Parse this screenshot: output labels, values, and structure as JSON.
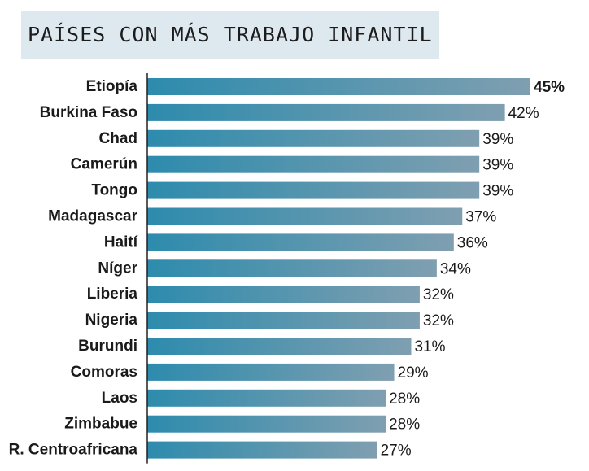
{
  "title": "PAÍSES CON MÁS TRABAJO INFANTIL",
  "colors": {
    "bar_start": "#2d8bad",
    "bar_end": "#7f9fb0",
    "title_bg": "#dde8ef",
    "axis": "#222222",
    "text": "#1a1a1a"
  },
  "chart_data": {
    "type": "bar",
    "orientation": "horizontal",
    "title": "PAÍSES CON MÁS TRABAJO INFANTIL",
    "categories": [
      "Etiopía",
      "Burkina Faso",
      "Chad",
      "Camerún",
      "Tongo",
      "Madagascar",
      "Haití",
      "Níger",
      "Liberia",
      "Nigeria",
      "Burundi",
      "Comoras",
      "Laos",
      "Zimbabue",
      "R. Centroafricana"
    ],
    "values": [
      45,
      42,
      39,
      39,
      39,
      37,
      36,
      34,
      32,
      32,
      31,
      29,
      28,
      28,
      27
    ],
    "value_labels": [
      "45%",
      "42%",
      "39%",
      "39%",
      "39%",
      "37%",
      "36%",
      "34%",
      "32%",
      "32%",
      "31%",
      "29%",
      "28%",
      "28%",
      "27%"
    ],
    "unit": "%",
    "xlim": [
      0,
      45
    ],
    "grid": false,
    "legend": "none"
  }
}
